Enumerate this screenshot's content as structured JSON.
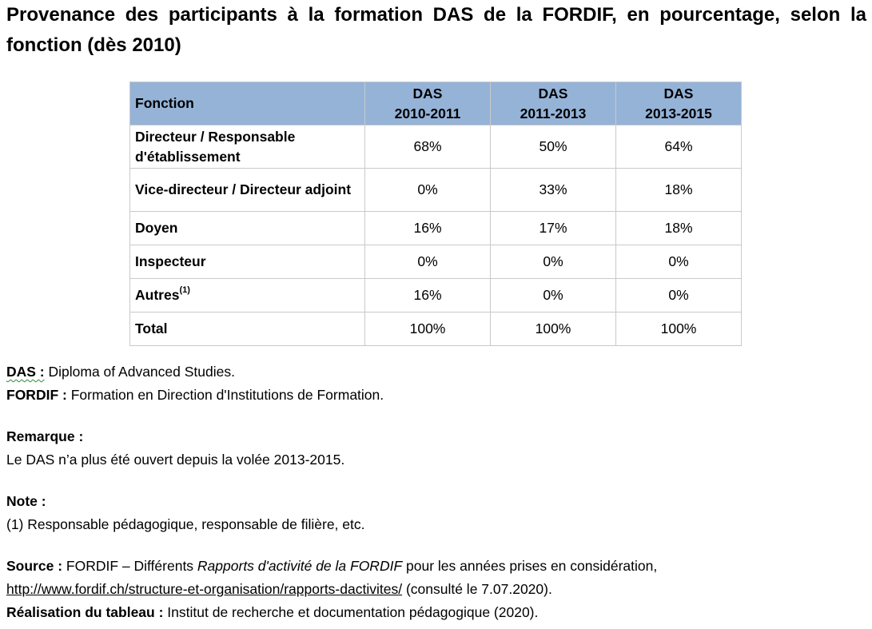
{
  "title": "Provenance des participants à la formation DAS de la FORDIF, en pourcentage, selon la fonction (dès 2010)",
  "table": {
    "header": {
      "fonction": "Fonction",
      "columns": [
        {
          "line1": "DAS",
          "line2": "2010-2011"
        },
        {
          "line1": "DAS",
          "line2": "2011-2013"
        },
        {
          "line1": "DAS",
          "line2": "2013-2015"
        }
      ]
    },
    "rows": [
      {
        "label": "Directeur / Responsable d'établissement",
        "values": [
          "68%",
          "50%",
          "64%"
        ]
      },
      {
        "label": "Vice-directeur / Directeur adjoint",
        "values": [
          "0%",
          "33%",
          "18%"
        ]
      },
      {
        "label": "Doyen",
        "values": [
          "16%",
          "17%",
          "18%"
        ]
      },
      {
        "label": "Inspecteur",
        "values": [
          "0%",
          "0%",
          "0%"
        ]
      },
      {
        "label": "Autres",
        "sup": "(1)",
        "values": [
          "16%",
          "0%",
          "0%"
        ]
      },
      {
        "label": "Total",
        "values": [
          "100%",
          "100%",
          "100%"
        ]
      }
    ]
  },
  "notes": {
    "das_label": "DAS :",
    "das_text": " Diploma of Advanced Studies.",
    "fordif_label": "FORDIF :",
    "fordif_text": " Formation en Direction d'Institutions de Formation.",
    "remarque_label": "Remarque :",
    "remarque_text": "Le DAS n’a plus été ouvert depuis la volée 2013-2015.",
    "note_label": "Note :",
    "note_text": "(1) Responsable pédagogique, responsable de filière, etc.",
    "source_label": "Source :",
    "source_text_1": " FORDIF – Différents ",
    "source_italic": "Rapports d'activité de la FORDIF",
    "source_text_2": " pour les années prises en considération,",
    "source_url": "http://www.fordif.ch/structure-et-organisation/rapports-dactivites/",
    "source_consulted": " (consulté le 7.07.2020).",
    "realisation_label": "Réalisation du tableau :",
    "realisation_text": " Institut de recherche et documentation pédagogique (2020)."
  }
}
